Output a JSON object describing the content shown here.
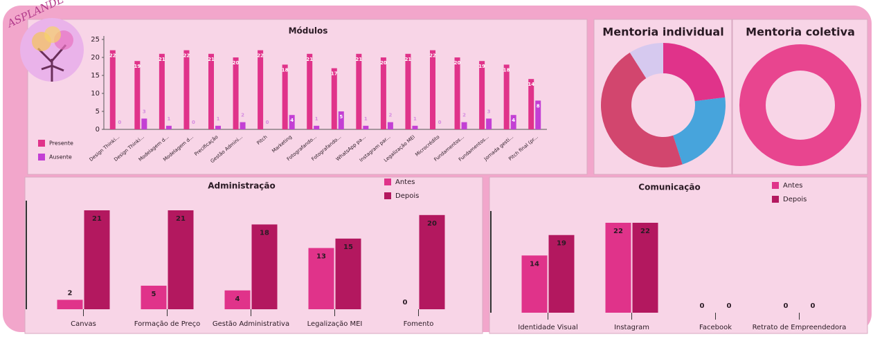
{
  "logo": "ASPLANDE",
  "chart_data": [
    {
      "type": "bar",
      "title": "Módulos",
      "categories": [
        "Design Thinki...",
        "Design Thinki...",
        "Modelagem d...",
        "Modelagem d...",
        "Precificação",
        "Gestão Admini...",
        "Pitch",
        "Marketing",
        "Fotografando...",
        "Fotografando...",
        "WhatsApp pa...",
        "Instagram par...",
        "Legalização MEI",
        "Microcrédito",
        "Fundamentos...",
        "Fundamentos...",
        "Jornada gesti...",
        "Pitch final (pr..."
      ],
      "series": [
        {
          "name": "Presente",
          "color": "#e0338a",
          "values": [
            22,
            19,
            21,
            22,
            21,
            20,
            22,
            18,
            21,
            17,
            21,
            20,
            21,
            22,
            20,
            19,
            18,
            14
          ]
        },
        {
          "name": "Ausente",
          "color": "#c33fd4",
          "values": [
            0,
            3,
            1,
            0,
            1,
            2,
            0,
            4,
            1,
            5,
            1,
            2,
            1,
            0,
            2,
            3,
            4,
            8
          ]
        }
      ],
      "ylim": [
        0,
        25
      ],
      "yticks": [
        0,
        5,
        10,
        15,
        20,
        25
      ]
    },
    {
      "type": "pie",
      "title": "Mentoria individual",
      "values": [
        23,
        22,
        46,
        9
      ],
      "colors": [
        "#e0338a",
        "#47a4dc",
        "#d2466e",
        "#d6c9ef"
      ]
    },
    {
      "type": "pie",
      "title": "Mentoria coletiva",
      "values": [
        100
      ],
      "colors": [
        "#e8458f"
      ]
    },
    {
      "type": "bar",
      "title": "Administração",
      "categories": [
        "Canvas",
        "Formação de Preço",
        "Gestão Administrativa",
        "Legalização MEI",
        "Fomento"
      ],
      "series": [
        {
          "name": "Antes",
          "color": "#e0338a",
          "values": [
            2,
            5,
            4,
            13,
            0
          ]
        },
        {
          "name": "Depois",
          "color": "#b3185f",
          "values": [
            21,
            21,
            18,
            15,
            20
          ]
        }
      ]
    },
    {
      "type": "bar",
      "title": "Comunicação",
      "categories": [
        "Identidade Visual",
        "Instagram",
        "Facebook",
        "Retrato de Empreendedora"
      ],
      "series": [
        {
          "name": "Antes",
          "color": "#e0338a",
          "values": [
            14,
            22,
            0,
            0
          ]
        },
        {
          "name": "Depois",
          "color": "#b3185f",
          "values": [
            19,
            22,
            0,
            0
          ]
        }
      ]
    }
  ]
}
